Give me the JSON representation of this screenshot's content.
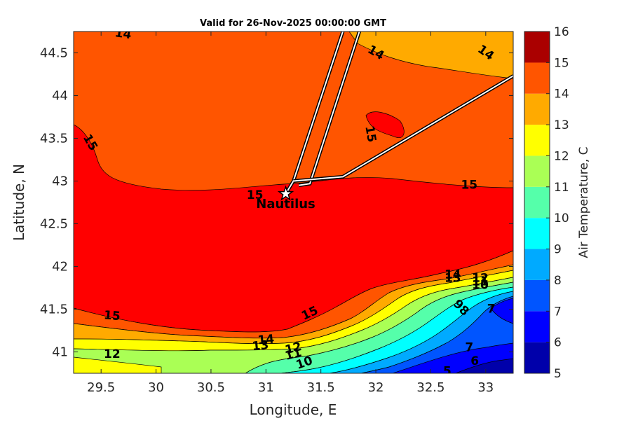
{
  "chart_data": {
    "type": "filled-contour",
    "title": "Valid for 26-Nov-2025 00:00:00 GMT",
    "xlabel": "Longitude, E",
    "ylabel": "Latitude, N",
    "xlim": [
      29.25,
      33.25
    ],
    "ylim": [
      40.75,
      44.75
    ],
    "xticks": [
      "29.5",
      "30",
      "30.5",
      "31",
      "31.5",
      "32",
      "32.5",
      "33"
    ],
    "yticks": [
      "41",
      "41.5",
      "42",
      "42.5",
      "43",
      "43.5",
      "44",
      "44.5"
    ],
    "grid": false,
    "colorbar": {
      "label": "Air Temperature, C",
      "min": 5,
      "max": 16,
      "ticks": [
        "5",
        "6",
        "7",
        "8",
        "9",
        "10",
        "11",
        "12",
        "13",
        "14",
        "15",
        "16"
      ],
      "levels": [
        {
          "from": 5,
          "to": 6,
          "color": "#0000aa"
        },
        {
          "from": 6,
          "to": 7,
          "color": "#0000ff"
        },
        {
          "from": 7,
          "to": 8,
          "color": "#0055ff"
        },
        {
          "from": 8,
          "to": 9,
          "color": "#00aaff"
        },
        {
          "from": 9,
          "to": 10,
          "color": "#00ffff"
        },
        {
          "from": 10,
          "to": 11,
          "color": "#55ffaa"
        },
        {
          "from": 11,
          "to": 12,
          "color": "#aaff55"
        },
        {
          "from": 12,
          "to": 13,
          "color": "#ffff00"
        },
        {
          "from": 13,
          "to": 14,
          "color": "#ffaa00"
        },
        {
          "from": 14,
          "to": 15,
          "color": "#ff5500"
        },
        {
          "from": 15,
          "to": 16,
          "color": "#ff0000"
        }
      ]
    },
    "contour_labels": [
      {
        "text": "14",
        "lon": 29.7,
        "lat": 44.72,
        "angle": 8
      },
      {
        "text": "14",
        "lon": 32.0,
        "lat": 44.5,
        "angle": 30
      },
      {
        "text": "14",
        "lon": 33.0,
        "lat": 44.5,
        "angle": 35
      },
      {
        "text": "15",
        "lon": 29.4,
        "lat": 43.45,
        "angle": 60
      },
      {
        "text": "15",
        "lon": 31.95,
        "lat": 43.55,
        "angle": 80
      },
      {
        "text": "15",
        "lon": 32.85,
        "lat": 42.95,
        "angle": 0
      },
      {
        "text": "15",
        "lon": 30.9,
        "lat": 42.83,
        "angle": 0
      },
      {
        "text": "15",
        "lon": 29.6,
        "lat": 41.42,
        "angle": 5
      },
      {
        "text": "15",
        "lon": 31.4,
        "lat": 41.45,
        "angle": -25
      },
      {
        "text": "14",
        "lon": 31.0,
        "lat": 41.14,
        "angle": -5
      },
      {
        "text": "13",
        "lon": 30.95,
        "lat": 41.07,
        "angle": -5
      },
      {
        "text": "12",
        "lon": 29.6,
        "lat": 40.97,
        "angle": 0
      },
      {
        "text": "12",
        "lon": 31.25,
        "lat": 41.04,
        "angle": -15
      },
      {
        "text": "11",
        "lon": 31.25,
        "lat": 40.97,
        "angle": -15
      },
      {
        "text": "10",
        "lon": 31.35,
        "lat": 40.87,
        "angle": -20
      },
      {
        "text": "14",
        "lon": 32.7,
        "lat": 41.9,
        "angle": 0
      },
      {
        "text": "13",
        "lon": 32.7,
        "lat": 41.86,
        "angle": 0
      },
      {
        "text": "12",
        "lon": 32.95,
        "lat": 41.86,
        "angle": 0
      },
      {
        "text": "11",
        "lon": 32.95,
        "lat": 41.82,
        "angle": 0
      },
      {
        "text": "10",
        "lon": 32.95,
        "lat": 41.78,
        "angle": 0
      },
      {
        "text": "9",
        "lon": 32.75,
        "lat": 41.55,
        "angle": 40
      },
      {
        "text": "8",
        "lon": 32.8,
        "lat": 41.48,
        "angle": 40
      },
      {
        "text": "7",
        "lon": 33.05,
        "lat": 41.5,
        "angle": 0
      },
      {
        "text": "7",
        "lon": 32.85,
        "lat": 41.05,
        "angle": 0
      },
      {
        "text": "6",
        "lon": 32.9,
        "lat": 40.89,
        "angle": 0
      },
      {
        "text": "5",
        "lon": 32.65,
        "lat": 40.77,
        "angle": 0
      }
    ],
    "vessel_position": {
      "name": "Nautilus",
      "lon": 31.18,
      "lat": 42.85
    },
    "track": [
      [
        31.18,
        42.85
      ],
      [
        31.25,
        43.0
      ],
      [
        31.7,
        44.75
      ]
    ],
    "track2": [
      [
        31.3,
        42.95
      ],
      [
        31.4,
        42.97
      ],
      [
        31.85,
        44.75
      ]
    ],
    "track3": [
      [
        31.25,
        43.0
      ],
      [
        31.7,
        43.05
      ],
      [
        33.25,
        44.23
      ]
    ]
  }
}
